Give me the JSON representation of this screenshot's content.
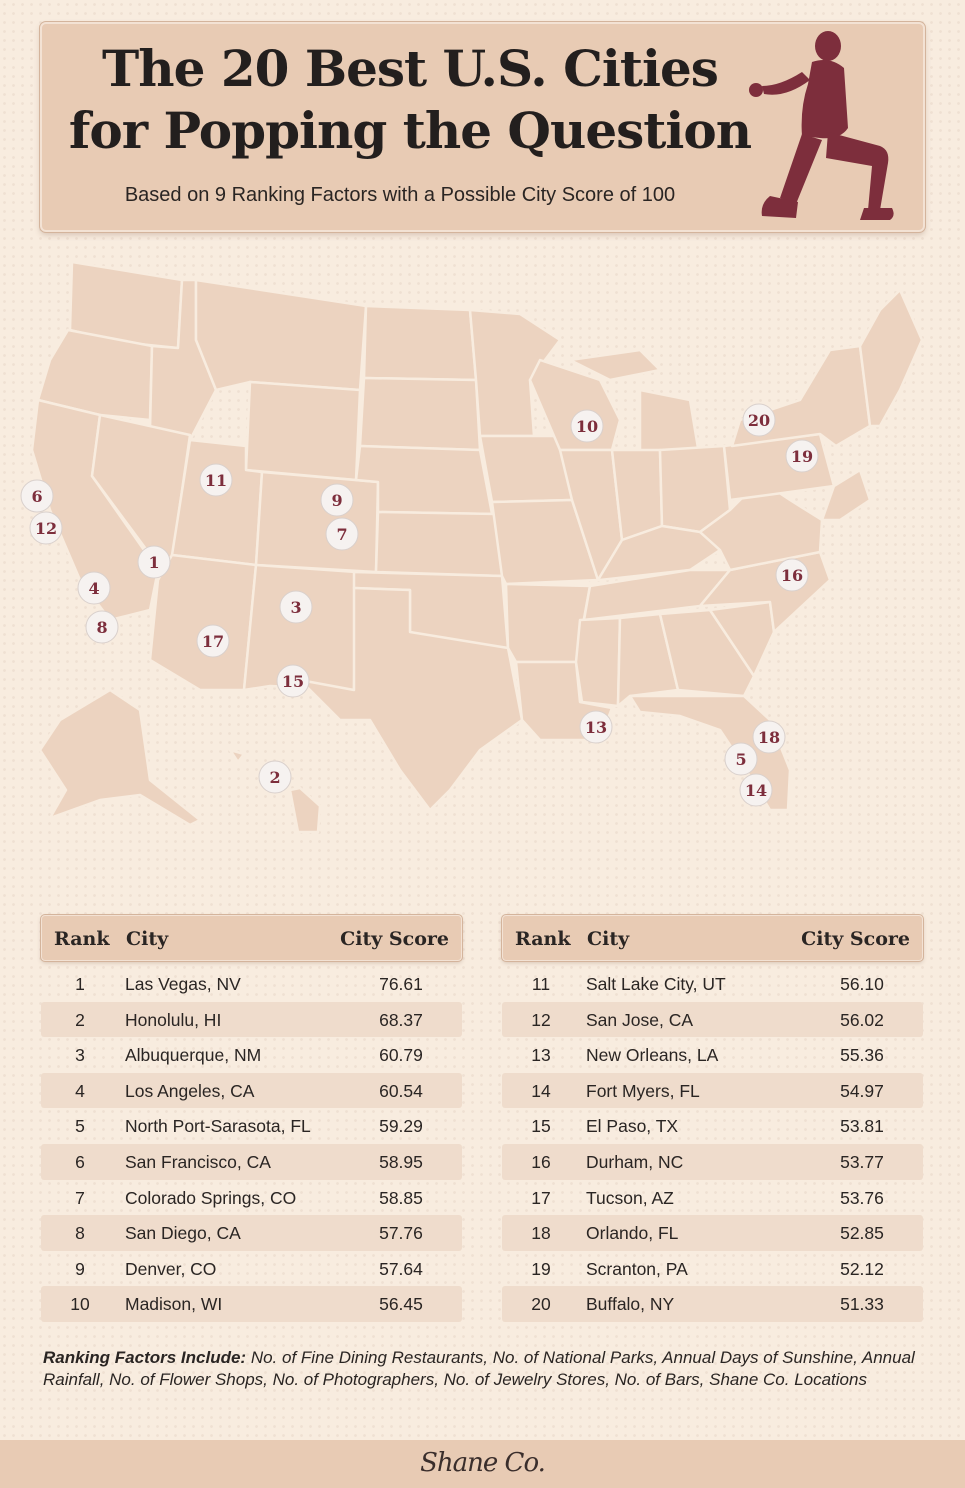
{
  "header": {
    "title": "The 20 Best U.S. Cities for Popping the Question",
    "subtitle": "Based on 9 Ranking Factors with a Possible City Score of 100"
  },
  "map": {
    "pins": [
      {
        "rank": "1",
        "city": "Las Vegas, NV"
      },
      {
        "rank": "2",
        "city": "Honolulu, HI"
      },
      {
        "rank": "3",
        "city": "Albuquerque, NM"
      },
      {
        "rank": "4",
        "city": "Los Angeles, CA"
      },
      {
        "rank": "5",
        "city": "North Port-Sarasota, FL"
      },
      {
        "rank": "6",
        "city": "San Francisco, CA"
      },
      {
        "rank": "7",
        "city": "Colorado Springs, CO"
      },
      {
        "rank": "8",
        "city": "San Diego, CA"
      },
      {
        "rank": "9",
        "city": "Denver, CO"
      },
      {
        "rank": "10",
        "city": "Madison, WI"
      },
      {
        "rank": "11",
        "city": "Salt Lake City, UT"
      },
      {
        "rank": "12",
        "city": "San Jose, CA"
      },
      {
        "rank": "13",
        "city": "New Orleans, LA"
      },
      {
        "rank": "14",
        "city": "Fort Myers, FL"
      },
      {
        "rank": "15",
        "city": "El Paso, TX"
      },
      {
        "rank": "16",
        "city": "Durham, NC"
      },
      {
        "rank": "17",
        "city": "Tucson, AZ"
      },
      {
        "rank": "18",
        "city": "Orlando, FL"
      },
      {
        "rank": "19",
        "city": "Scranton, PA"
      },
      {
        "rank": "20",
        "city": "Buffalo, NY"
      }
    ]
  },
  "table": {
    "headers": {
      "rank": "Rank",
      "city": "City",
      "score": "City Score"
    },
    "rows": [
      {
        "rank": "1",
        "city": "Las Vegas, NV",
        "score": "76.61"
      },
      {
        "rank": "2",
        "city": "Honolulu, HI",
        "score": "68.37"
      },
      {
        "rank": "3",
        "city": "Albuquerque, NM",
        "score": "60.79"
      },
      {
        "rank": "4",
        "city": "Los Angeles, CA",
        "score": "60.54"
      },
      {
        "rank": "5",
        "city": "North Port-Sarasota, FL",
        "score": "59.29"
      },
      {
        "rank": "6",
        "city": "San Francisco, CA",
        "score": "58.95"
      },
      {
        "rank": "7",
        "city": "Colorado Springs, CO",
        "score": "58.85"
      },
      {
        "rank": "8",
        "city": "San Diego, CA",
        "score": "57.76"
      },
      {
        "rank": "9",
        "city": "Denver, CO",
        "score": "57.64"
      },
      {
        "rank": "10",
        "city": "Madison, WI",
        "score": "56.45"
      },
      {
        "rank": "11",
        "city": "Salt Lake City, UT",
        "score": "56.10"
      },
      {
        "rank": "12",
        "city": "San Jose, CA",
        "score": "56.02"
      },
      {
        "rank": "13",
        "city": "New Orleans, LA",
        "score": "55.36"
      },
      {
        "rank": "14",
        "city": "Fort Myers, FL",
        "score": "54.97"
      },
      {
        "rank": "15",
        "city": "El Paso, TX",
        "score": "53.81"
      },
      {
        "rank": "16",
        "city": "Durham, NC",
        "score": "53.77"
      },
      {
        "rank": "17",
        "city": "Tucson, AZ",
        "score": "53.76"
      },
      {
        "rank": "18",
        "city": "Orlando, FL",
        "score": "52.85"
      },
      {
        "rank": "19",
        "city": "Scranton, PA",
        "score": "52.12"
      },
      {
        "rank": "20",
        "city": "Buffalo, NY",
        "score": "51.33"
      }
    ]
  },
  "footnote": {
    "label": "Ranking Factors Include:",
    "text": "No. of Fine Dining Restaurants, No. of National Parks, Annual Days of Sunshine, Annual Rainfall, No. of Flower Shops, No. of Photographers, No. of Jewelry Stores, No. of Bars, Shane Co. Locations"
  },
  "footer": {
    "logo": "Shane Co."
  },
  "colors": {
    "background": "#f8ecdf",
    "card": "#e8cbb4",
    "land": "#ecd3c0",
    "accent": "#7d2e3c"
  }
}
